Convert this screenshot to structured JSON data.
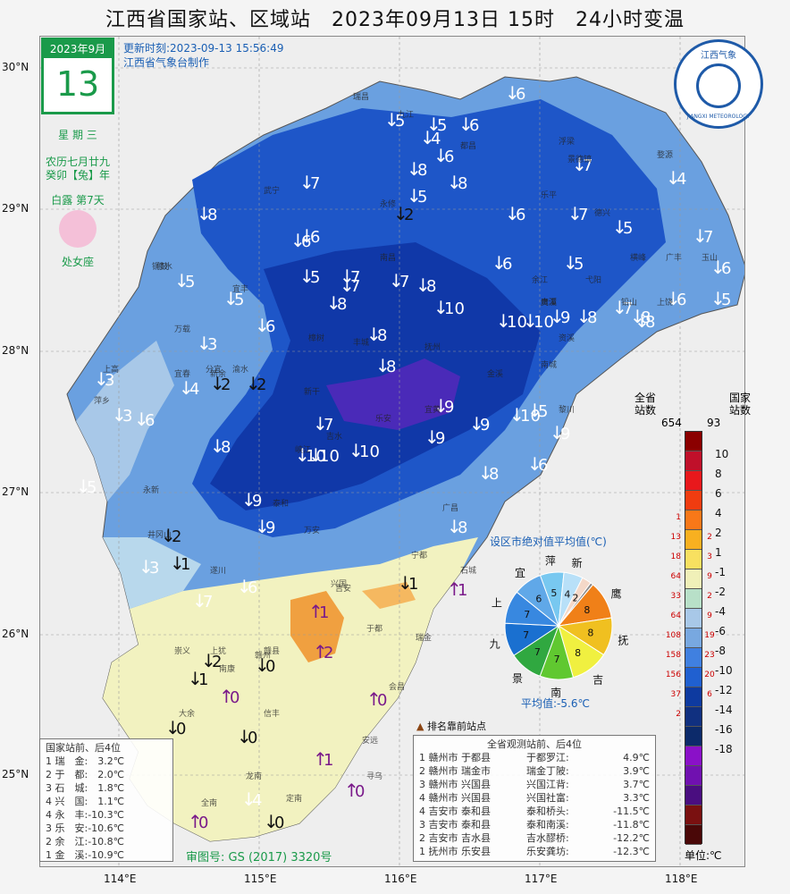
{
  "title": "江西省国家站、区域站　2023年09月13日 15时　24小时变温",
  "calendar": {
    "month": "2023年9月",
    "day": "13",
    "weekday": "星 期 三",
    "lunar": "农历七月廿九",
    "ganzhi": "癸卯【兔】年",
    "solar_term": "白露 第7天",
    "zodiac": "处女座"
  },
  "update_time": "更新时刻:2023-09-13 15:56:49",
  "producer": "江西省气象台制作",
  "latitudes": [
    "30°N",
    "29°N",
    "28°N",
    "27°N",
    "26°N",
    "25°N"
  ],
  "longitudes": [
    "114°E",
    "115°E",
    "116°E",
    "117°E",
    "118°E"
  ],
  "map_values": [
    {
      "v": "6",
      "dir": "down",
      "color": "white"
    },
    {
      "v": "5",
      "dir": "down",
      "color": "white"
    },
    {
      "v": "5",
      "dir": "down",
      "color": "white"
    },
    {
      "v": "6",
      "dir": "down",
      "color": "white"
    },
    {
      "v": "4",
      "dir": "down",
      "color": "white"
    },
    {
      "v": "6",
      "dir": "down",
      "color": "white"
    },
    {
      "v": "8",
      "dir": "down",
      "color": "white"
    },
    {
      "v": "7",
      "dir": "down",
      "color": "white"
    },
    {
      "v": "8",
      "dir": "down",
      "color": "white"
    },
    {
      "v": "5",
      "dir": "down",
      "color": "white"
    },
    {
      "v": "4",
      "dir": "down",
      "color": "white"
    },
    {
      "v": "7",
      "dir": "down",
      "color": "white"
    },
    {
      "v": "8",
      "dir": "down",
      "color": "white"
    },
    {
      "v": "2",
      "dir": "down",
      "color": "black"
    },
    {
      "v": "6",
      "dir": "down",
      "color": "white"
    },
    {
      "v": "7",
      "dir": "down",
      "color": "white"
    },
    {
      "v": "5",
      "dir": "down",
      "color": "white"
    },
    {
      "v": "7",
      "dir": "down",
      "color": "white"
    },
    {
      "v": "6",
      "dir": "down",
      "color": "white"
    },
    {
      "v": "6",
      "dir": "down",
      "color": "white"
    },
    {
      "v": "5",
      "dir": "down",
      "color": "white"
    },
    {
      "v": "7",
      "dir": "down",
      "color": "white"
    },
    {
      "v": "6",
      "dir": "down",
      "color": "white"
    },
    {
      "v": "5",
      "dir": "down",
      "color": "white"
    },
    {
      "v": "6",
      "dir": "down",
      "color": "white"
    },
    {
      "v": "7",
      "dir": "down",
      "color": "white"
    },
    {
      "v": "7",
      "dir": "down",
      "color": "white"
    },
    {
      "v": "8",
      "dir": "down",
      "color": "white"
    },
    {
      "v": "5",
      "dir": "down",
      "color": "white"
    },
    {
      "v": "8",
      "dir": "down",
      "color": "white"
    },
    {
      "v": "10",
      "dir": "down",
      "color": "white"
    },
    {
      "v": "10",
      "dir": "down",
      "color": "white"
    },
    {
      "v": "10",
      "dir": "down",
      "color": "white"
    },
    {
      "v": "9",
      "dir": "down",
      "color": "white"
    },
    {
      "v": "8",
      "dir": "down",
      "color": "white"
    },
    {
      "v": "7",
      "dir": "down",
      "color": "white"
    },
    {
      "v": "8",
      "dir": "down",
      "color": "white"
    },
    {
      "v": "8",
      "dir": "down",
      "color": "white"
    },
    {
      "v": "6",
      "dir": "down",
      "color": "white"
    },
    {
      "v": "5",
      "dir": "down",
      "color": "white"
    },
    {
      "v": "6",
      "dir": "down",
      "color": "white"
    },
    {
      "v": "5",
      "dir": "down",
      "color": "white"
    },
    {
      "v": "3",
      "dir": "down",
      "color": "white"
    },
    {
      "v": "8",
      "dir": "down",
      "color": "white"
    },
    {
      "v": "2",
      "dir": "down",
      "color": "black"
    },
    {
      "v": "2",
      "dir": "down",
      "color": "black"
    },
    {
      "v": "4",
      "dir": "down",
      "color": "white"
    },
    {
      "v": "3",
      "dir": "down",
      "color": "white"
    },
    {
      "v": "3",
      "dir": "down",
      "color": "white"
    },
    {
      "v": "6",
      "dir": "down",
      "color": "white"
    },
    {
      "v": "8",
      "dir": "down",
      "color": "white"
    },
    {
      "v": "9",
      "dir": "down",
      "color": "white"
    },
    {
      "v": "10",
      "dir": "down",
      "color": "white"
    },
    {
      "v": "7",
      "dir": "down",
      "color": "white"
    },
    {
      "v": "9",
      "dir": "down",
      "color": "white"
    },
    {
      "v": "9",
      "dir": "down",
      "color": "white"
    },
    {
      "v": "10",
      "dir": "down",
      "color": "white"
    },
    {
      "v": "9",
      "dir": "down",
      "color": "white"
    },
    {
      "v": "5",
      "dir": "down",
      "color": "white"
    },
    {
      "v": "8",
      "dir": "down",
      "color": "white"
    },
    {
      "v": "10",
      "dir": "down",
      "color": "white"
    },
    {
      "v": "10",
      "dir": "down",
      "color": "white"
    },
    {
      "v": "8",
      "dir": "down",
      "color": "white"
    },
    {
      "v": "6",
      "dir": "down",
      "color": "white"
    },
    {
      "v": "9",
      "dir": "down",
      "color": "white"
    },
    {
      "v": "5",
      "dir": "down",
      "color": "white"
    },
    {
      "v": "9",
      "dir": "down",
      "color": "white"
    },
    {
      "v": "2",
      "dir": "down",
      "color": "black"
    },
    {
      "v": "8",
      "dir": "down",
      "color": "white"
    },
    {
      "v": "1",
      "dir": "down",
      "color": "black"
    },
    {
      "v": "3",
      "dir": "down",
      "color": "white"
    },
    {
      "v": "6",
      "dir": "down",
      "color": "white"
    },
    {
      "v": "7",
      "dir": "down",
      "color": "white"
    },
    {
      "v": "1",
      "dir": "down",
      "color": "black"
    },
    {
      "v": "1",
      "dir": "up",
      "color": "purple"
    },
    {
      "v": "1",
      "dir": "up",
      "color": "purple"
    },
    {
      "v": "2",
      "dir": "up",
      "color": "purple"
    },
    {
      "v": "0",
      "dir": "down",
      "color": "black"
    },
    {
      "v": "1",
      "dir": "down",
      "color": "black"
    },
    {
      "v": "2",
      "dir": "down",
      "color": "black"
    },
    {
      "v": "0",
      "dir": "up",
      "color": "purple"
    },
    {
      "v": "0",
      "dir": "up",
      "color": "purple"
    },
    {
      "v": "0",
      "dir": "down",
      "color": "black"
    },
    {
      "v": "0",
      "dir": "down",
      "color": "black"
    },
    {
      "v": "1",
      "dir": "up",
      "color": "purple"
    },
    {
      "v": "4",
      "dir": "down",
      "color": "white"
    },
    {
      "v": "0",
      "dir": "up",
      "color": "purple"
    },
    {
      "v": "0",
      "dir": "up",
      "color": "purple"
    },
    {
      "v": "0",
      "dir": "down",
      "color": "black"
    }
  ],
  "cities": [
    "南昌",
    "九江",
    "景德镇",
    "萍乡",
    "新余",
    "鹰潭",
    "赣州",
    "吉安",
    "宜春",
    "抚州",
    "上饶",
    "瑞昌",
    "都昌",
    "修水",
    "武宁",
    "永修",
    "婺源",
    "铜鼓",
    "万载",
    "分宜",
    "渝水",
    "宜丰",
    "上高",
    "樟树",
    "丰城",
    "乐安",
    "宜黄",
    "南城",
    "永新",
    "井冈山",
    "遂川",
    "广昌",
    "宁都",
    "石城",
    "兴国",
    "于都",
    "瑞金",
    "会昌",
    "寻乌",
    "安远",
    "信丰",
    "龙南",
    "定南",
    "全南",
    "大余",
    "崇义",
    "上犹",
    "南康",
    "赣县",
    "万安",
    "泰和",
    "吉水",
    "峡江",
    "新干",
    "金溪",
    "黎川",
    "资溪",
    "贵溪",
    "余江",
    "弋阳",
    "横峰",
    "铅山",
    "广丰",
    "玉山",
    "德兴",
    "乐平",
    "浮梁"
  ],
  "legend": {
    "header_all": "全省\n站数",
    "header_nat": "国家\n站数",
    "total_all": "654",
    "total_nat": "93",
    "ticks": [
      "10",
      "8",
      "6",
      "4",
      "2",
      "1",
      "-1",
      "-2",
      "-4",
      "-6",
      "-8",
      "-10",
      "-12",
      "-14",
      "-16",
      "-18"
    ],
    "colors": [
      "#8b0000",
      "#c0102a",
      "#e8181c",
      "#f03c10",
      "#f87818",
      "#f8b020",
      "#f8e060",
      "#f0f0b8",
      "#b8e0c8",
      "#a8c8e8",
      "#78a8e0",
      "#4080e0",
      "#2060d0",
      "#0e3aa0",
      "#103080",
      "#0c2a6a",
      "#8a10c8",
      "#7010b0",
      "#4a0e80",
      "#7a1010",
      "#4a0808"
    ],
    "counts_all": [
      "",
      "",
      "",
      "",
      "1",
      "13",
      "18",
      "64",
      "33",
      "64",
      "108",
      "158",
      "156",
      "37",
      "2",
      "",
      "",
      "",
      "",
      "",
      ""
    ],
    "counts_nat": [
      "",
      "",
      "",
      "",
      "",
      "2",
      "3",
      "9",
      "2",
      "9",
      "19",
      "23",
      "20",
      "6",
      "",
      "",
      "",
      "",
      "",
      "",
      ""
    ],
    "unit": "单位:℃"
  },
  "pie": {
    "title": "设区市绝对值平均值(℃)",
    "avg": "平均值:-5.6℃",
    "slices": [
      {
        "name": "萍",
        "value": "5",
        "color": "#78c8f0"
      },
      {
        "name": "新",
        "value": "4",
        "color": "#b8e0f8"
      },
      {
        "name": "",
        "value": "2",
        "color": "#f4d8c8"
      },
      {
        "name": "",
        "value": "",
        "color": "#8a8a8a"
      },
      {
        "name": "鹰",
        "value": "8",
        "color": "#f08018"
      },
      {
        "name": "抚",
        "value": "8",
        "color": "#f0c020"
      },
      {
        "name": "吉",
        "value": "8",
        "color": "#f0f040"
      },
      {
        "name": "南",
        "value": "7",
        "color": "#60c830"
      },
      {
        "name": "景",
        "value": "7",
        "color": "#30a840"
      },
      {
        "name": "九",
        "value": "7",
        "color": "#1a70d0"
      },
      {
        "name": "上",
        "value": "7",
        "color": "#3888e0"
      },
      {
        "name": "宜",
        "value": "6",
        "color": "#60a8e8"
      }
    ]
  },
  "rank_legend": "排名靠前站点",
  "national_box": {
    "title": "国家站前、后4位",
    "rows": [
      "1 瑞　金:　3.2℃",
      "2 于　都:　2.0℃",
      "3 石　城:　1.8℃",
      "4 兴　国:　1.1℃",
      "4 永　丰:-10.3℃",
      "3 乐　安:-10.6℃",
      "2 余　江:-10.8℃",
      "1 金　溪:-10.9℃"
    ]
  },
  "province_box": {
    "title": "全省观测站前、后4位",
    "rows": [
      [
        "1 赣州市 于都县",
        "于都罗江:",
        "4.9℃"
      ],
      [
        "2 赣州市 瑞金市",
        "瑞金丁陂:",
        "3.9℃"
      ],
      [
        "3 赣州市 兴国县",
        "兴国江背:",
        "3.7℃"
      ],
      [
        "4 赣州市 兴国县",
        "兴国社富:",
        "3.3℃"
      ],
      [
        "4 吉安市 泰和县",
        "泰和桥头:",
        "-11.5℃"
      ],
      [
        "3 吉安市 泰和县",
        "泰和南溪:",
        "-11.8℃"
      ],
      [
        "2 吉安市 吉水县",
        "吉水醪桥:",
        "-12.2℃"
      ],
      [
        "1 抚州市 乐安县",
        "乐安龚坊:",
        "-12.3℃"
      ]
    ]
  },
  "map_review_no": "审图号: GS (2017) 3320号",
  "logo_text": "江西气象",
  "logo_sub": "JIANGXI METEOROLOGY"
}
